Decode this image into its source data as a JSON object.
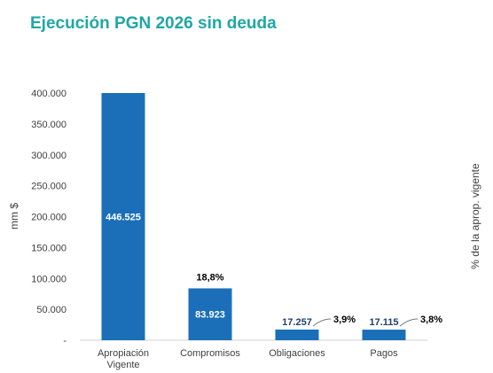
{
  "page": {
    "title": "Ejecución PGN 2026 sin deuda"
  },
  "colors": {
    "title": "#1fa7a6",
    "bar": "#1a6fb8",
    "axis_text": "#404040",
    "pct_text": "#000000"
  },
  "chart_data": {
    "type": "bar",
    "title": "Ejecución PGN 2026 sin deuda",
    "ylabel": "mm $",
    "y2label": "% de la aprop. vigente",
    "ylim": [
      0,
      400000
    ],
    "yticks": [
      "400.000",
      "350.000",
      "300.000",
      "250.000",
      "200.000",
      "150.000",
      "100.000",
      "50.000",
      "-"
    ],
    "ytick_values": [
      400000,
      350000,
      300000,
      250000,
      200000,
      150000,
      100000,
      50000,
      0
    ],
    "categories": [
      [
        "Apropiación",
        "Vigente"
      ],
      [
        "Compromisos"
      ],
      [
        "Obligaciones"
      ],
      [
        "Pagos"
      ]
    ],
    "values": [
      446525,
      83923,
      17257,
      17115
    ],
    "value_labels": [
      "446.525",
      "83.923",
      "17.257",
      "17.115"
    ],
    "pct_labels": [
      "",
      "18,8%",
      "3,9%",
      "3,8%"
    ],
    "grid": false,
    "legend": "none"
  }
}
